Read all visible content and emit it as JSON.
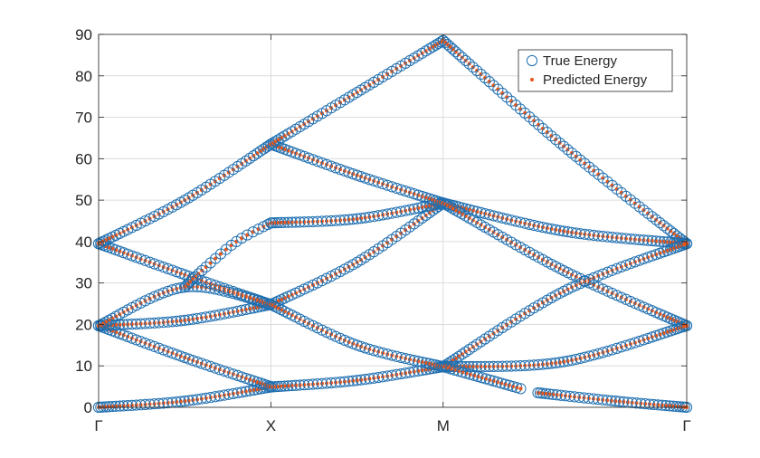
{
  "colors": {
    "true_marker": "#1f6fb0",
    "pred_marker": "#e8561b",
    "axis": "#262626",
    "grid": "#dcdcdc",
    "background": "#ffffff"
  },
  "chart_data": {
    "type": "scatter",
    "title": "",
    "xlabel": "",
    "ylabel": "",
    "x_path_labels": [
      "Γ",
      "X",
      "M",
      "Γ"
    ],
    "x_path_ticks": [
      0,
      1,
      2,
      3.414
    ],
    "xlim": [
      0,
      3.414
    ],
    "ylim": [
      0,
      90
    ],
    "y_ticks": [
      0,
      10,
      20,
      30,
      40,
      50,
      60,
      70,
      80,
      90
    ],
    "grid": true,
    "legend_position": "top-right",
    "series": [
      {
        "name": "True Energy",
        "marker": "open-circle"
      },
      {
        "name": "Predicted Energy",
        "marker": "dot"
      }
    ],
    "bands": [
      {
        "segment": "Γ-X",
        "points": [
          [
            0,
            0
          ],
          [
            0.5,
            1.5
          ],
          [
            1,
            4.9
          ]
        ]
      },
      {
        "segment": "Γ-X",
        "points": [
          [
            0,
            19.7
          ],
          [
            0.5,
            12
          ],
          [
            1,
            5.0
          ]
        ]
      },
      {
        "segment": "Γ-X",
        "points": [
          [
            0,
            19.7
          ],
          [
            0.5,
            21
          ],
          [
            1,
            24.8
          ]
        ]
      },
      {
        "segment": "Γ-X",
        "points": [
          [
            0,
            19.7
          ],
          [
            0.5,
            29
          ],
          [
            1,
            24.8
          ]
        ]
      },
      {
        "segment": "Γ-X",
        "points": [
          [
            0,
            39.5
          ],
          [
            0.5,
            32
          ],
          [
            1,
            24.8
          ]
        ]
      },
      {
        "segment": "Γ-X",
        "points": [
          [
            0,
            39.5
          ],
          [
            0.5,
            50
          ],
          [
            1,
            63.5
          ]
        ]
      },
      {
        "segment": "Γ-X",
        "points": [
          [
            0.5,
            29
          ],
          [
            0.6,
            33
          ],
          [
            0.8,
            40
          ],
          [
            1,
            44.5
          ]
        ]
      },
      {
        "segment": "X-M",
        "points": [
          [
            1,
            4.9
          ],
          [
            1.5,
            6.5
          ],
          [
            2,
            9.8
          ]
        ]
      },
      {
        "segment": "X-M",
        "points": [
          [
            1,
            24.8
          ],
          [
            1.5,
            35
          ],
          [
            2,
            49.3
          ]
        ]
      },
      {
        "segment": "X-M",
        "points": [
          [
            1,
            24.8
          ],
          [
            1.5,
            15
          ],
          [
            2,
            9.8
          ]
        ]
      },
      {
        "segment": "X-M",
        "points": [
          [
            1,
            44.5
          ],
          [
            1.5,
            45.5
          ],
          [
            2,
            49.3
          ]
        ]
      },
      {
        "segment": "X-M",
        "points": [
          [
            1,
            63.5
          ],
          [
            1.5,
            56
          ],
          [
            2,
            49.3
          ]
        ]
      },
      {
        "segment": "X-M",
        "points": [
          [
            1,
            63.5
          ],
          [
            1.5,
            76
          ],
          [
            2,
            88.5
          ]
        ]
      },
      {
        "segment": "M-Γ",
        "points": [
          [
            2,
            88.5
          ],
          [
            2.7,
            63
          ],
          [
            3.414,
            39.5
          ]
        ]
      },
      {
        "segment": "M-Γ",
        "points": [
          [
            2,
            49.3
          ],
          [
            2.7,
            42.5
          ],
          [
            3.414,
            39.5
          ]
        ]
      },
      {
        "segment": "M-Γ",
        "points": [
          [
            2,
            49.3
          ],
          [
            2.7,
            33
          ],
          [
            3.414,
            19.7
          ]
        ]
      },
      {
        "segment": "M-Γ",
        "points": [
          [
            2,
            9.8
          ],
          [
            2.7,
            28
          ],
          [
            3.414,
            39.5
          ]
        ]
      },
      {
        "segment": "M-Γ",
        "points": [
          [
            2,
            9.8
          ],
          [
            2.7,
            11
          ],
          [
            3.414,
            19.7
          ]
        ]
      },
      {
        "segment": "M-Γ",
        "points": [
          [
            2,
            9.8
          ],
          [
            2.45,
            4.5
          ]
        ]
      },
      {
        "segment": "M-Γ",
        "points": [
          [
            2.55,
            3.5
          ],
          [
            3.0,
            1.5
          ],
          [
            3.414,
            0
          ]
        ]
      }
    ]
  }
}
